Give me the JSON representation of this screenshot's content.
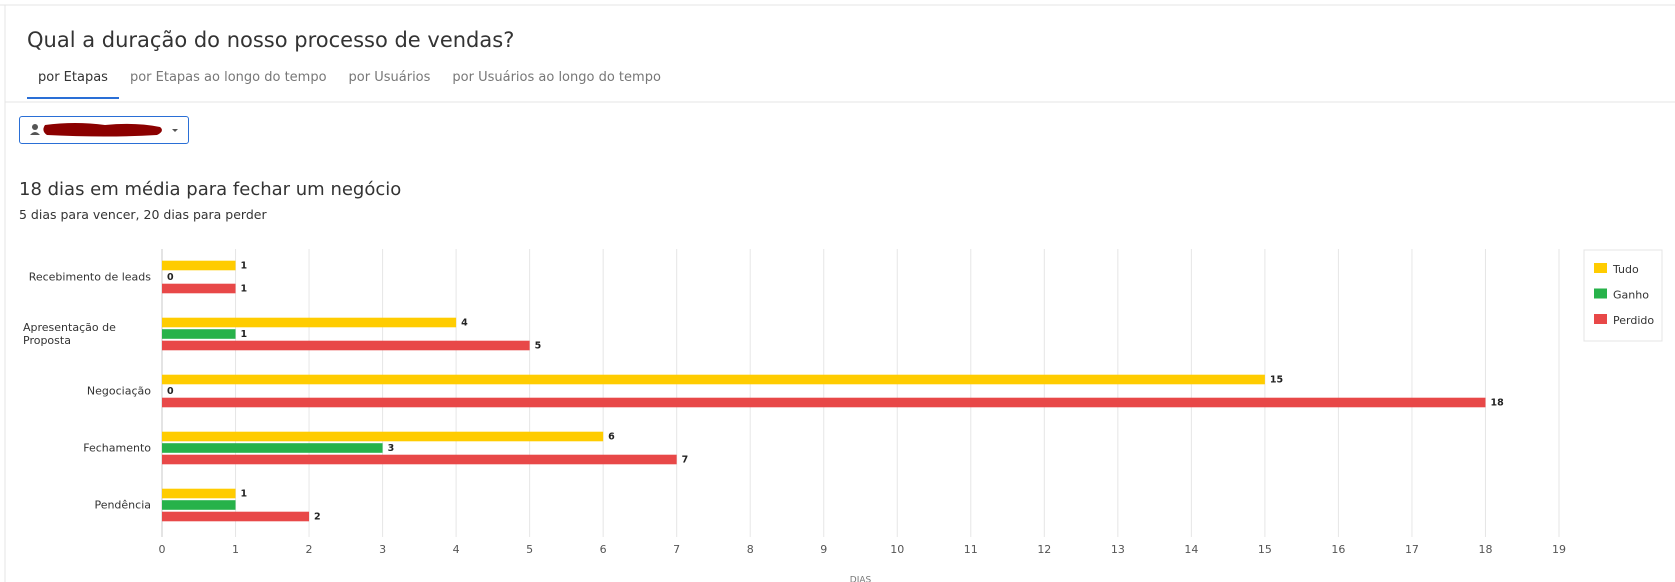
{
  "header": {
    "title": "Qual a duração do nosso processo de vendas?",
    "tabs": [
      "por Etapas",
      "por Etapas ao longo do tempo",
      "por Usuários",
      "por Usuários ao longo do tempo"
    ]
  },
  "summary": {
    "headline": "18 dias em média para fechar um negócio",
    "detail": "5 dias para vencer, 20 dias para perder"
  },
  "chart_data": {
    "type": "bar",
    "orientation": "horizontal",
    "categories": [
      "Recebimento de leads",
      "Apresentação de Proposta",
      "Negociação",
      "Fechamento",
      "Pendência"
    ],
    "series": [
      {
        "name": "Tudo",
        "color": "#ffcc00",
        "values": [
          1,
          4,
          15,
          6,
          1
        ]
      },
      {
        "name": "Ganho",
        "color": "#27b24a",
        "values": [
          0,
          1,
          0,
          3,
          1
        ],
        "value_labels": [
          "0",
          "1",
          "0",
          "3",
          null
        ]
      },
      {
        "name": "Perdido",
        "color": "#e84848",
        "values": [
          1,
          5,
          18,
          7,
          2
        ]
      }
    ],
    "xlim": [
      0,
      19
    ],
    "xticks": [
      0,
      1,
      2,
      3,
      4,
      5,
      6,
      7,
      8,
      9,
      10,
      11,
      12,
      13,
      14,
      15,
      16,
      17,
      18,
      19
    ],
    "xlabel": "DIAS",
    "grid": true,
    "legend": "top-right"
  }
}
